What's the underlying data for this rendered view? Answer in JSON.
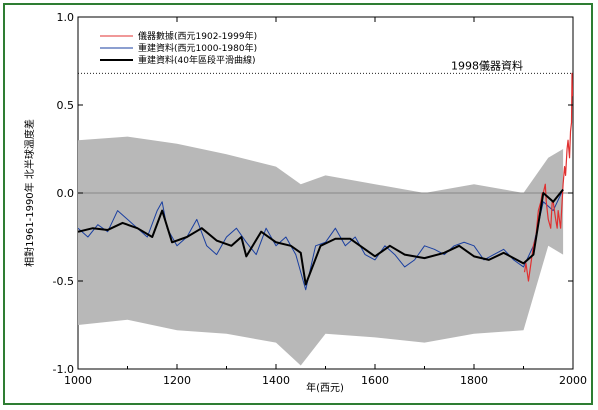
{
  "chart_data": {
    "type": "line",
    "xlabel": "年(西元)",
    "ylabel": "相對1961-1990年 北半球溫度差",
    "xlim": [
      1000,
      2000
    ],
    "ylim": [
      -1.0,
      1.0
    ],
    "x_ticks": [
      1000,
      1200,
      1400,
      1600,
      1800,
      2000
    ],
    "y_ticks": [
      -1.0,
      -0.5,
      0.0,
      0.5,
      1.0
    ],
    "y_tick_labels": [
      "-1.0",
      "-0.5",
      "0.0",
      "0.5",
      "1.0"
    ],
    "reference_line_y": 0.0,
    "annotation": {
      "text": "1998儀器資料",
      "y": 0.68
    },
    "legend_position": "top-left",
    "colors": {
      "instrumental": "#e03030",
      "reconstruction": "#1a3fa0",
      "smoothed": "#000000",
      "uncertainty": "#b8b8b8",
      "frame": "#2e7d32"
    },
    "series": [
      {
        "name": "儀器數據(西元1902-1999年)",
        "kind": "line",
        "x": [
          1902,
          1905,
          1910,
          1915,
          1920,
          1925,
          1930,
          1935,
          1938,
          1940,
          1944,
          1946,
          1950,
          1955,
          1958,
          1960,
          1965,
          1968,
          1970,
          1975,
          1978,
          1980,
          1983,
          1985,
          1988,
          1990,
          1993,
          1995,
          1997,
          1998,
          1999
        ],
        "values": [
          -0.45,
          -0.4,
          -0.5,
          -0.4,
          -0.3,
          -0.25,
          -0.1,
          -0.05,
          0.0,
          0.0,
          0.05,
          -0.05,
          -0.15,
          -0.2,
          -0.05,
          -0.05,
          -0.15,
          -0.2,
          -0.1,
          -0.2,
          -0.05,
          0.05,
          0.15,
          0.1,
          0.25,
          0.3,
          0.2,
          0.35,
          0.4,
          0.68,
          0.55
        ]
      },
      {
        "name": "重建資料(西元1000-1980年)",
        "kind": "line",
        "x": [
          1000,
          1020,
          1040,
          1060,
          1080,
          1100,
          1120,
          1140,
          1160,
          1170,
          1180,
          1200,
          1220,
          1240,
          1260,
          1280,
          1300,
          1320,
          1340,
          1360,
          1380,
          1400,
          1420,
          1440,
          1460,
          1480,
          1500,
          1520,
          1540,
          1560,
          1580,
          1600,
          1620,
          1640,
          1660,
          1680,
          1700,
          1720,
          1740,
          1760,
          1780,
          1800,
          1820,
          1840,
          1860,
          1880,
          1900,
          1920,
          1940,
          1960,
          1980
        ],
        "values": [
          -0.2,
          -0.25,
          -0.18,
          -0.22,
          -0.1,
          -0.15,
          -0.2,
          -0.25,
          -0.1,
          -0.05,
          -0.2,
          -0.3,
          -0.25,
          -0.15,
          -0.3,
          -0.35,
          -0.25,
          -0.2,
          -0.28,
          -0.35,
          -0.2,
          -0.3,
          -0.25,
          -0.35,
          -0.55,
          -0.3,
          -0.28,
          -0.2,
          -0.3,
          -0.25,
          -0.35,
          -0.38,
          -0.3,
          -0.35,
          -0.42,
          -0.38,
          -0.3,
          -0.32,
          -0.35,
          -0.3,
          -0.28,
          -0.3,
          -0.38,
          -0.35,
          -0.32,
          -0.38,
          -0.42,
          -0.3,
          -0.05,
          -0.1,
          0.02
        ]
      },
      {
        "name": "重建資料(40年區段平滑曲線)",
        "kind": "line",
        "x": [
          1000,
          1030,
          1060,
          1090,
          1120,
          1150,
          1170,
          1190,
          1220,
          1250,
          1280,
          1310,
          1330,
          1340,
          1370,
          1400,
          1430,
          1450,
          1460,
          1490,
          1520,
          1550,
          1580,
          1600,
          1630,
          1660,
          1700,
          1740,
          1770,
          1800,
          1830,
          1860,
          1900,
          1920,
          1940,
          1960,
          1980
        ],
        "values": [
          -0.22,
          -0.2,
          -0.21,
          -0.17,
          -0.2,
          -0.25,
          -0.1,
          -0.28,
          -0.25,
          -0.2,
          -0.27,
          -0.3,
          -0.25,
          -0.36,
          -0.22,
          -0.28,
          -0.3,
          -0.34,
          -0.52,
          -0.3,
          -0.26,
          -0.26,
          -0.32,
          -0.36,
          -0.3,
          -0.35,
          -0.37,
          -0.34,
          -0.3,
          -0.36,
          -0.38,
          -0.34,
          -0.4,
          -0.35,
          0.0,
          -0.05,
          0.02
        ]
      },
      {
        "name": "uncertainty",
        "kind": "band",
        "x": [
          1000,
          1100,
          1200,
          1300,
          1400,
          1450,
          1500,
          1600,
          1700,
          1800,
          1900,
          1950,
          1980
        ],
        "lower": [
          -0.75,
          -0.72,
          -0.78,
          -0.8,
          -0.85,
          -0.98,
          -0.8,
          -0.82,
          -0.85,
          -0.8,
          -0.78,
          -0.3,
          -0.35
        ],
        "upper": [
          0.3,
          0.32,
          0.28,
          0.22,
          0.15,
          0.05,
          0.1,
          0.05,
          0.0,
          0.05,
          0.0,
          0.2,
          0.25
        ]
      }
    ]
  }
}
